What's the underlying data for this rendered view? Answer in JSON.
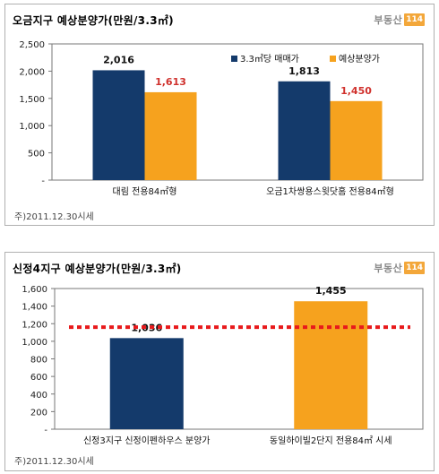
{
  "logo": {
    "text": "부동산",
    "badge": "114"
  },
  "colors": {
    "navy": "#143a6b",
    "orange": "#f6a21e",
    "red_label": "#d0312d",
    "dotted": "#e8191b"
  },
  "chart_data": [
    {
      "type": "bar",
      "title": "오금지구 예상분양가(만원/3.3㎡)",
      "categories": [
        "대림 전용84㎡형",
        "오금1차쌍용스윗닷홈 전용84㎡형"
      ],
      "series": [
        {
          "name": "3.3㎡당 매매가",
          "values": [
            2016,
            1813
          ],
          "labels": [
            "2,016",
            "1,813"
          ],
          "color": "#143a6b"
        },
        {
          "name": "예상분양가",
          "values": [
            1613,
            1450
          ],
          "labels": [
            "1,613",
            "1,450"
          ],
          "color": "#f6a21e"
        }
      ],
      "ylim": [
        0,
        2500
      ],
      "yticks": [
        "-",
        "500",
        "1,000",
        "1,500",
        "2,000",
        "2,500"
      ],
      "legend": "top-right",
      "note": "주)2011.12.30시세"
    },
    {
      "type": "bar",
      "title": "신정4지구 예상분양가(만원/3.3㎡)",
      "categories": [
        "신정3지구 신정이펜하우스 분양가",
        "동일하이빌2단지 전용84㎡ 시세"
      ],
      "values": [
        1036,
        1455
      ],
      "labels": [
        "1,036",
        "1,455"
      ],
      "bar_colors": [
        "#143a6b",
        "#f6a21e"
      ],
      "reference_line": 1160,
      "ylim": [
        0,
        1600
      ],
      "yticks": [
        "-",
        "200",
        "400",
        "600",
        "800",
        "1,000",
        "1,200",
        "1,400",
        "1,600"
      ],
      "note": "주)2011.12.30시세"
    }
  ]
}
